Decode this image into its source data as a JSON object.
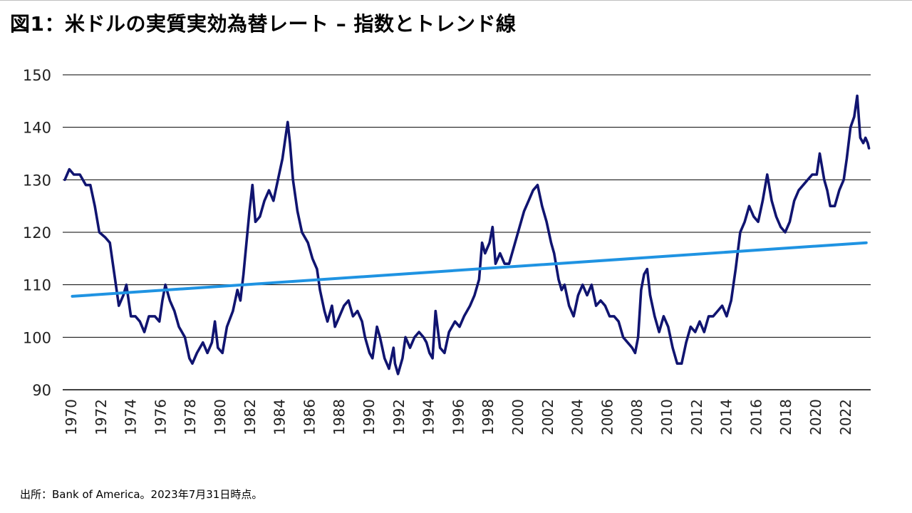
{
  "title": "図1：米ドルの実質実効為替レート – 指数とトレンド線",
  "source": "出所：Bank of America。2023年7月31日時点。",
  "colors": {
    "index_line": "#101470",
    "trend_line": "#1f93e2",
    "gridline": "#000000"
  },
  "chart_data": {
    "type": "line",
    "title": "図1：米ドルの実質実効為替レート – 指数とトレンド線",
    "xlabel": "",
    "ylabel": "",
    "xlim": [
      1970,
      2023.6
    ],
    "ylim": [
      90,
      150
    ],
    "yticks": [
      90,
      100,
      110,
      120,
      130,
      140,
      150
    ],
    "xticks": [
      "1970",
      "1972",
      "1974",
      "1976",
      "1978",
      "1980",
      "1982",
      "1984",
      "1986",
      "1988",
      "1990",
      "1992",
      "1994",
      "1996",
      "1998",
      "2000",
      "2002",
      "2004",
      "2006",
      "2008",
      "2010",
      "2012",
      "2014",
      "2016",
      "2018",
      "2020",
      "2022"
    ],
    "grid": "horizontal",
    "legend": "none",
    "series": [
      {
        "role": "index",
        "color": "#101470",
        "points": [
          [
            1970.0,
            130
          ],
          [
            1970.3,
            132
          ],
          [
            1970.6,
            131
          ],
          [
            1971.0,
            131
          ],
          [
            1971.4,
            129
          ],
          [
            1971.7,
            129
          ],
          [
            1972.0,
            125
          ],
          [
            1972.3,
            120
          ],
          [
            1972.7,
            119
          ],
          [
            1973.0,
            118
          ],
          [
            1973.3,
            112
          ],
          [
            1973.6,
            106
          ],
          [
            1973.9,
            108
          ],
          [
            1974.1,
            110
          ],
          [
            1974.4,
            104
          ],
          [
            1974.7,
            104
          ],
          [
            1975.0,
            103
          ],
          [
            1975.3,
            101
          ],
          [
            1975.6,
            104
          ],
          [
            1976.0,
            104
          ],
          [
            1976.3,
            103
          ],
          [
            1976.5,
            107
          ],
          [
            1976.7,
            110
          ],
          [
            1977.0,
            107
          ],
          [
            1977.3,
            105
          ],
          [
            1977.6,
            102
          ],
          [
            1978.0,
            100
          ],
          [
            1978.3,
            96
          ],
          [
            1978.5,
            95
          ],
          [
            1978.8,
            97
          ],
          [
            1979.2,
            99
          ],
          [
            1979.5,
            97
          ],
          [
            1979.8,
            99
          ],
          [
            1980.0,
            103
          ],
          [
            1980.2,
            98
          ],
          [
            1980.5,
            97
          ],
          [
            1980.8,
            102
          ],
          [
            1981.2,
            105
          ],
          [
            1981.5,
            109
          ],
          [
            1981.7,
            107
          ],
          [
            1981.9,
            112
          ],
          [
            1982.1,
            118
          ],
          [
            1982.3,
            124
          ],
          [
            1982.5,
            129
          ],
          [
            1982.7,
            122
          ],
          [
            1983.0,
            123
          ],
          [
            1983.3,
            126
          ],
          [
            1983.6,
            128
          ],
          [
            1983.9,
            126
          ],
          [
            1984.2,
            130
          ],
          [
            1984.5,
            134
          ],
          [
            1984.7,
            138
          ],
          [
            1984.85,
            141
          ],
          [
            1985.0,
            137
          ],
          [
            1985.2,
            130
          ],
          [
            1985.5,
            124
          ],
          [
            1985.8,
            120
          ],
          [
            1986.2,
            118
          ],
          [
            1986.5,
            115
          ],
          [
            1986.8,
            113
          ],
          [
            1987.0,
            109
          ],
          [
            1987.3,
            105
          ],
          [
            1987.5,
            103
          ],
          [
            1987.8,
            106
          ],
          [
            1988.0,
            102
          ],
          [
            1988.3,
            104
          ],
          [
            1988.6,
            106
          ],
          [
            1988.9,
            107
          ],
          [
            1989.2,
            104
          ],
          [
            1989.5,
            105
          ],
          [
            1989.8,
            103
          ],
          [
            1990.0,
            100
          ],
          [
            1990.3,
            97
          ],
          [
            1990.5,
            96
          ],
          [
            1990.8,
            102
          ],
          [
            1991.0,
            100
          ],
          [
            1991.3,
            96
          ],
          [
            1991.6,
            94
          ],
          [
            1991.9,
            98
          ],
          [
            1992.0,
            95
          ],
          [
            1992.2,
            93
          ],
          [
            1992.5,
            96
          ],
          [
            1992.7,
            100
          ],
          [
            1993.0,
            98
          ],
          [
            1993.3,
            100
          ],
          [
            1993.6,
            101
          ],
          [
            1993.9,
            100
          ],
          [
            1994.1,
            99
          ],
          [
            1994.3,
            97
          ],
          [
            1994.5,
            96
          ],
          [
            1994.7,
            105
          ],
          [
            1995.0,
            98
          ],
          [
            1995.3,
            97
          ],
          [
            1995.6,
            101
          ],
          [
            1996.0,
            103
          ],
          [
            1996.3,
            102
          ],
          [
            1996.6,
            104
          ],
          [
            1997.0,
            106
          ],
          [
            1997.3,
            108
          ],
          [
            1997.6,
            111
          ],
          [
            1997.8,
            118
          ],
          [
            1998.0,
            116
          ],
          [
            1998.3,
            118
          ],
          [
            1998.5,
            121
          ],
          [
            1998.7,
            114
          ],
          [
            1999.0,
            116
          ],
          [
            1999.3,
            114
          ],
          [
            1999.6,
            114
          ],
          [
            2000.0,
            118
          ],
          [
            2000.3,
            121
          ],
          [
            2000.6,
            124
          ],
          [
            2000.9,
            126
          ],
          [
            2001.2,
            128
          ],
          [
            2001.5,
            129
          ],
          [
            2001.8,
            125
          ],
          [
            2002.1,
            122
          ],
          [
            2002.4,
            118
          ],
          [
            2002.6,
            116
          ],
          [
            2002.9,
            111
          ],
          [
            2003.1,
            109
          ],
          [
            2003.3,
            110
          ],
          [
            2003.6,
            106
          ],
          [
            2003.9,
            104
          ],
          [
            2004.2,
            108
          ],
          [
            2004.5,
            110
          ],
          [
            2004.8,
            108
          ],
          [
            2005.1,
            110
          ],
          [
            2005.4,
            106
          ],
          [
            2005.7,
            107
          ],
          [
            2006.0,
            106
          ],
          [
            2006.3,
            104
          ],
          [
            2006.6,
            104
          ],
          [
            2006.9,
            103
          ],
          [
            2007.2,
            100
          ],
          [
            2007.5,
            99
          ],
          [
            2007.8,
            98
          ],
          [
            2008.0,
            97
          ],
          [
            2008.2,
            100
          ],
          [
            2008.4,
            109
          ],
          [
            2008.6,
            112
          ],
          [
            2008.8,
            113
          ],
          [
            2009.0,
            108
          ],
          [
            2009.3,
            104
          ],
          [
            2009.6,
            101
          ],
          [
            2009.9,
            104
          ],
          [
            2010.2,
            102
          ],
          [
            2010.5,
            98
          ],
          [
            2010.8,
            95
          ],
          [
            2011.1,
            95
          ],
          [
            2011.4,
            99
          ],
          [
            2011.7,
            102
          ],
          [
            2012.0,
            101
          ],
          [
            2012.3,
            103
          ],
          [
            2012.6,
            101
          ],
          [
            2012.9,
            104
          ],
          [
            2013.2,
            104
          ],
          [
            2013.5,
            105
          ],
          [
            2013.8,
            106
          ],
          [
            2014.1,
            104
          ],
          [
            2014.4,
            107
          ],
          [
            2014.7,
            113
          ],
          [
            2015.0,
            120
          ],
          [
            2015.3,
            122
          ],
          [
            2015.6,
            125
          ],
          [
            2015.9,
            123
          ],
          [
            2016.2,
            122
          ],
          [
            2016.5,
            126
          ],
          [
            2016.8,
            131
          ],
          [
            2017.1,
            126
          ],
          [
            2017.4,
            123
          ],
          [
            2017.7,
            121
          ],
          [
            2018.0,
            120
          ],
          [
            2018.3,
            122
          ],
          [
            2018.6,
            126
          ],
          [
            2018.9,
            128
          ],
          [
            2019.2,
            129
          ],
          [
            2019.5,
            130
          ],
          [
            2019.8,
            131
          ],
          [
            2020.1,
            131
          ],
          [
            2020.3,
            135
          ],
          [
            2020.6,
            130
          ],
          [
            2020.8,
            128
          ],
          [
            2021.0,
            125
          ],
          [
            2021.3,
            125
          ],
          [
            2021.6,
            128
          ],
          [
            2021.9,
            130
          ],
          [
            2022.1,
            134
          ],
          [
            2022.35,
            140
          ],
          [
            2022.6,
            142
          ],
          [
            2022.8,
            146
          ],
          [
            2023.0,
            138
          ],
          [
            2023.2,
            137
          ],
          [
            2023.35,
            138
          ],
          [
            2023.5,
            137
          ],
          [
            2023.58,
            136
          ]
        ]
      },
      {
        "role": "trend",
        "color": "#1f93e2",
        "points": [
          [
            1970.5,
            107.8
          ],
          [
            2023.4,
            118.0
          ]
        ]
      }
    ]
  }
}
